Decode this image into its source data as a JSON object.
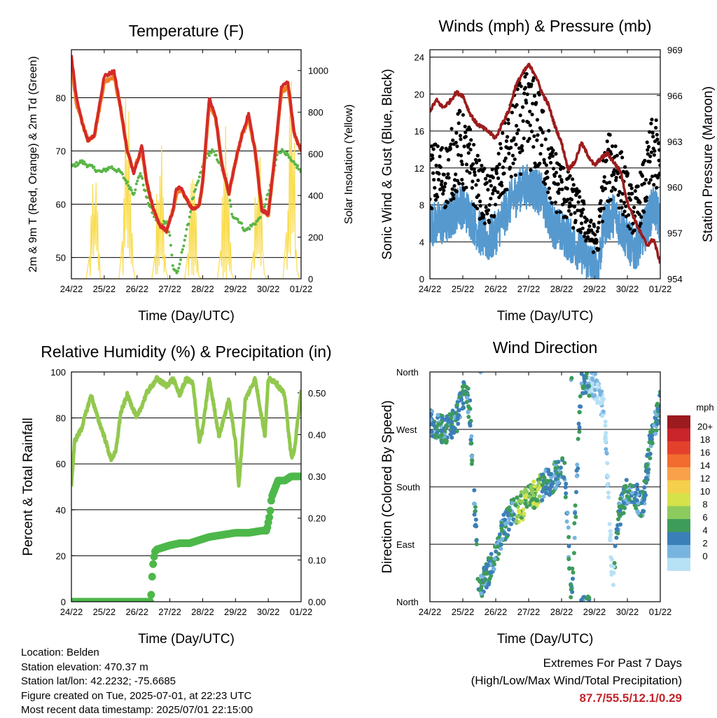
{
  "x_ticks": [
    "24/22",
    "25/22",
    "26/22",
    "27/22",
    "28/22",
    "29/22",
    "30/22",
    "01/22"
  ],
  "chart_data": [
    {
      "type": "line",
      "title": "Temperature (F)",
      "xlabel": "Time (Day/UTC)",
      "ylabel": "2m & 9m T (Red, Orange) & 2m Td (Green)",
      "y2label": "Solar Insolation (Yellow)",
      "ylim": [
        46,
        89
      ],
      "y_ticks": [
        50,
        60,
        70,
        80
      ],
      "y2lim": [
        0,
        1100
      ],
      "y2_ticks": [
        0,
        200,
        400,
        600,
        800,
        1000
      ],
      "grid": true,
      "series": [
        {
          "color": "#d42a2a",
          "x": [
            0,
            0.15,
            0.3,
            0.5,
            0.7,
            1.0,
            1.3,
            1.5,
            1.7,
            1.9,
            2.0,
            2.15,
            2.3,
            2.5,
            2.7,
            2.9,
            3.0,
            3.1,
            3.2,
            3.35,
            3.5,
            3.7,
            3.9,
            4.0,
            4.2,
            4.4,
            4.6,
            4.8,
            5.0,
            5.2,
            5.4,
            5.6,
            5.8,
            6.0,
            6.2,
            6.4,
            6.6,
            6.8,
            7.0
          ],
          "y": [
            88,
            80,
            76,
            72,
            73,
            84,
            85,
            78,
            70,
            66,
            68,
            71,
            64,
            59,
            56,
            55,
            57,
            59,
            63,
            63,
            61,
            59,
            60,
            64,
            80,
            76,
            67,
            62,
            68,
            73,
            77,
            70,
            59,
            58,
            69,
            82,
            83,
            73,
            70
          ]
        },
        {
          "color": "#f07f22",
          "x": [
            0,
            0.15,
            0.3,
            0.5,
            0.7,
            1.0,
            1.3,
            1.5,
            1.7,
            1.9,
            2.0,
            2.15,
            2.3,
            2.5,
            2.7,
            2.9,
            3.0,
            3.1,
            3.2,
            3.35,
            3.5,
            3.7,
            3.9,
            4.0,
            4.2,
            4.4,
            4.6,
            4.8,
            5.0,
            5.2,
            5.4,
            5.6,
            5.8,
            6.0,
            6.2,
            6.4,
            6.6,
            6.8,
            7.0
          ],
          "y": [
            87,
            79,
            76,
            72,
            73,
            83,
            84,
            78,
            70,
            66,
            68,
            70,
            64,
            59,
            56,
            55,
            57,
            59,
            62,
            63,
            61,
            59,
            60,
            64,
            79,
            76,
            67,
            62,
            68,
            73,
            76,
            70,
            59,
            58,
            69,
            81,
            82,
            73,
            70
          ]
        },
        {
          "color": "#5ab548",
          "x": [
            0,
            0.3,
            0.6,
            0.9,
            1.2,
            1.5,
            1.7,
            1.9,
            2.1,
            2.3,
            2.5,
            2.7,
            2.9,
            3.0,
            3.1,
            3.25,
            3.4,
            3.55,
            3.7,
            3.9,
            4.1,
            4.3,
            4.5,
            4.7,
            4.9,
            5.1,
            5.3,
            5.5,
            5.7,
            5.9,
            6.1,
            6.3,
            6.5,
            6.7,
            6.9,
            7.0
          ],
          "y": [
            67,
            68,
            67,
            66,
            67,
            66,
            64,
            62,
            66,
            61,
            58,
            56,
            57,
            54,
            48,
            47,
            52,
            56,
            61,
            65,
            69,
            70,
            68,
            65,
            58,
            57,
            55,
            56,
            57,
            60,
            64,
            70,
            70,
            68,
            67,
            66
          ]
        },
        {
          "color": "#f9dc4f",
          "name": "solar",
          "axis": "y2",
          "days": [
            0,
            1,
            2,
            3,
            4,
            5,
            6
          ],
          "peaks": [
            600,
            1030,
            720,
            600,
            880,
            780,
            1050
          ]
        }
      ]
    },
    {
      "type": "scatter",
      "title": "Winds (mph) & Pressure (mb)",
      "xlabel": "Time (Day/UTC)",
      "ylabel": "Sonic Wind & Gust (Blue, Black)",
      "y2label": "Station Pressure (Maroon)",
      "ylim": [
        0,
        24.8
      ],
      "y_ticks": [
        0,
        4,
        8,
        12,
        16,
        20,
        24
      ],
      "y2lim": [
        954,
        969
      ],
      "y2_ticks": [
        954,
        957,
        960,
        963,
        966,
        969
      ],
      "grid": true,
      "series": [
        {
          "color": "#9b1c1c",
          "name": "pressure",
          "axis": "y2",
          "x": [
            0,
            0.2,
            0.4,
            0.6,
            0.8,
            1.0,
            1.2,
            1.4,
            1.6,
            1.8,
            2.0,
            2.2,
            2.4,
            2.6,
            2.8,
            3.0,
            3.2,
            3.4,
            3.6,
            3.8,
            4.0,
            4.2,
            4.4,
            4.6,
            4.8,
            5.0,
            5.2,
            5.4,
            5.6,
            5.8,
            6.0,
            6.2,
            6.4,
            6.6,
            6.8,
            7.0
          ],
          "y": [
            965.0,
            965.7,
            965.2,
            965.6,
            966.2,
            966.0,
            964.9,
            964.2,
            963.9,
            963.6,
            963.2,
            964.2,
            965.0,
            966.6,
            967.4,
            968.0,
            967.4,
            966.2,
            965.4,
            964.0,
            962.9,
            961.2,
            961.6,
            962.9,
            962.1,
            961.4,
            961.9,
            962.2,
            961.6,
            961.0,
            959.0,
            958.0,
            957.0,
            956.2,
            956.6,
            955.0
          ]
        },
        {
          "color": "#5599cf",
          "name": "wind"
        },
        {
          "color": "#000000",
          "name": "gust"
        }
      ]
    },
    {
      "type": "line",
      "title": "Relative Humidity (%) & Precipitation (in)",
      "xlabel": "Time (Day/UTC)",
      "ylabel": "Percent & Total Rainfall",
      "ylim": [
        0,
        100
      ],
      "y_ticks": [
        0,
        20,
        40,
        60,
        80,
        100
      ],
      "y2lim": [
        0,
        0.55
      ],
      "y2_ticks": [
        "0.00",
        "0.10",
        "0.20",
        "0.30",
        "0.40",
        "0.50"
      ],
      "grid": true,
      "series": [
        {
          "color": "#92c84e",
          "name": "rh",
          "x": [
            0,
            0.1,
            0.3,
            0.6,
            0.8,
            1.0,
            1.2,
            1.35,
            1.5,
            1.7,
            2.0,
            2.3,
            2.6,
            2.9,
            3.1,
            3.3,
            3.5,
            3.7,
            3.9,
            4.0,
            4.2,
            4.5,
            4.8,
            5.0,
            5.1,
            5.3,
            5.6,
            5.9,
            6.0,
            6.2,
            6.5,
            6.7,
            6.8,
            7.0
          ],
          "y": [
            51,
            70,
            75,
            90,
            80,
            72,
            62,
            65,
            82,
            90,
            80,
            91,
            97,
            94,
            97,
            90,
            97,
            95,
            70,
            75,
            97,
            72,
            88,
            70,
            50,
            88,
            97,
            72,
            97,
            96,
            90,
            63,
            66,
            92
          ]
        },
        {
          "color": "#4db84a",
          "name": "precip",
          "axis": "y2",
          "x": [
            0,
            1.5,
            2.42,
            2.45,
            2.5,
            2.55,
            2.6,
            3.0,
            3.3,
            3.6,
            4.0,
            4.2,
            4.6,
            5.0,
            5.4,
            5.8,
            5.95,
            6.05,
            6.1,
            6.3,
            6.5,
            6.7,
            7.0
          ],
          "y": [
            0,
            0,
            0,
            0.05,
            0.1,
            0.12,
            0.125,
            0.135,
            0.14,
            0.14,
            0.15,
            0.155,
            0.16,
            0.165,
            0.165,
            0.17,
            0.17,
            0.21,
            0.25,
            0.29,
            0.29,
            0.3,
            0.3
          ]
        }
      ]
    },
    {
      "type": "scatter",
      "title": "Wind Direction",
      "xlabel": "Time (Day/UTC)",
      "ylabel": "Direction (Colored By Speed)",
      "y_ticks": [
        "North",
        "East",
        "South",
        "West",
        "North"
      ],
      "ylim": [
        0,
        360
      ],
      "grid": true,
      "colorbar": {
        "title": "mph",
        "labels": [
          "20+",
          "18",
          "16",
          "14",
          "12",
          "10",
          "8",
          "6",
          "4",
          "2",
          "0"
        ],
        "colors": [
          "#9b1b1e",
          "#c9252b",
          "#e4412d",
          "#f26b2f",
          "#f8a04a",
          "#f5d04c",
          "#d5e24a",
          "#8ccb5e",
          "#3e9c5a",
          "#3b7fb8",
          "#78b4e0",
          "#b7e1f5"
        ]
      },
      "direction_path": {
        "x": [
          0,
          0.3,
          0.5,
          0.8,
          1.0,
          1.2,
          1.5,
          1.65,
          1.9,
          2.2,
          2.5,
          2.8,
          3.1,
          3.4,
          3.7,
          3.9,
          4.1,
          4.3,
          4.6,
          4.85,
          4.9,
          5.1,
          5.3,
          5.55,
          5.7,
          5.95,
          6.2,
          6.45,
          6.7,
          7.0
        ],
        "y": [
          280,
          270,
          268,
          285,
          325,
          310,
          10,
          40,
          55,
          110,
          140,
          150,
          165,
          180,
          190,
          205,
          210,
          0,
          350,
          345,
          345,
          330,
          300,
          30,
          120,
          175,
          175,
          145,
          250,
          310
        ]
      }
    }
  ],
  "info": {
    "location": "Location: Belden",
    "elevation": "Station elevation: 470.37 m",
    "latlon": "Station lat/lon: 42.2232; -75.6685",
    "created": "Figure created on Tue, 2025-07-01, at 22:23 UTC",
    "recent": "Most recent data timestamp: 2025/07/01 22:15:00"
  },
  "extremes": {
    "title": "Extremes For Past 7 Days",
    "subtitle": "(High/Low/Max Wind/Total Precipitation)",
    "values": "87.7/55.5/12.1/0.29"
  }
}
